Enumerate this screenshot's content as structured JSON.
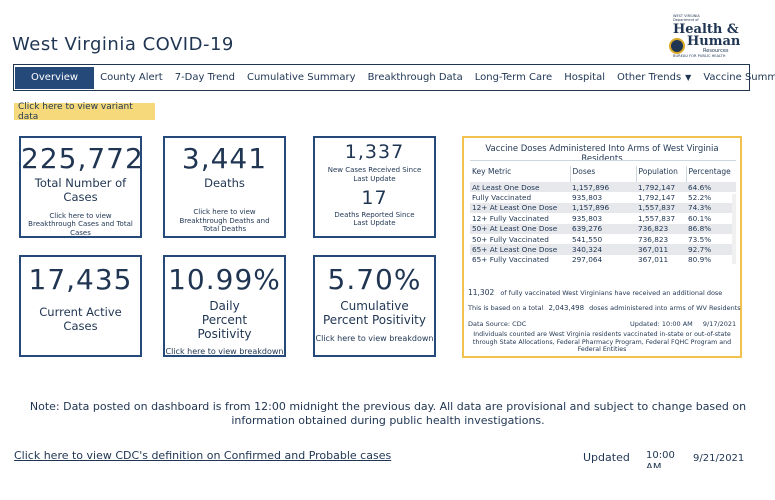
{
  "header": {
    "title": "West Virginia COVID-19"
  },
  "logo": {
    "line1": "WEST VIRGINIA",
    "line2": "Department of",
    "health": "Health &",
    "human": "Human",
    "resources": "Resources",
    "bureau": "BUREAU FOR PUBLIC HEALTH"
  },
  "nav": {
    "tabs": [
      {
        "label": "Overview"
      },
      {
        "label": "County Alert"
      },
      {
        "label": "7-Day Trend"
      },
      {
        "label": "Cumulative Summary"
      },
      {
        "label": "Breakthrough Data"
      },
      {
        "label": "Long-Term Care"
      },
      {
        "label": "Hospital"
      },
      {
        "label": "Other Trends"
      },
      {
        "label": "Vaccine Summary"
      }
    ],
    "active_index": 0
  },
  "variant_link": "Click here to view variant data",
  "cards": {
    "total_cases": {
      "value": "225,772",
      "label": "Total Number of Cases",
      "link": "Click here to view Breakthrough Cases and Total Cases"
    },
    "deaths": {
      "value": "3,441",
      "label": "Deaths",
      "link": "Click here to view Breakthrough Deaths and Total Deaths"
    },
    "new_cases": {
      "value": "1,337",
      "label": "New Cases Received Since Last Update",
      "deaths_value": "17",
      "deaths_label": "Deaths Reported Since Last Update"
    },
    "active": {
      "value": "17,435",
      "label": "Current Active Cases"
    },
    "daily_positivity": {
      "value": "10.99%",
      "label": "Daily Percent Positivity",
      "link": "Click here to view breakdown"
    },
    "cumulative_positivity": {
      "value": "5.70%",
      "label": "Cumulative Percent Positivity",
      "link": "Click here to view breakdown"
    }
  },
  "vaccine": {
    "title": "Vaccine Doses Administered Into Arms of West Virginia Residents",
    "columns": [
      "Key Metric",
      "Doses",
      "Population",
      "Percentage"
    ],
    "rows": [
      [
        "At Least One Dose",
        "1,157,896",
        "1,792,147",
        "64.6%"
      ],
      [
        "Fully Vaccinated",
        "935,803",
        "1,792,147",
        "52.2%"
      ],
      [
        "12+ At Least One Dose",
        "1,157,896",
        "1,557,837",
        "74.3%"
      ],
      [
        "12+ Fully Vaccinated",
        "935,803",
        "1,557,837",
        "60.1%"
      ],
      [
        "50+ At Least One Dose",
        "639,276",
        "736,823",
        "86.8%"
      ],
      [
        "50+ Fully Vaccinated",
        "541,550",
        "736,823",
        "73.5%"
      ],
      [
        "65+ At Least One Dose",
        "340,324",
        "367,011",
        "92.7%"
      ],
      [
        "65+ Fully Vaccinated",
        "297,064",
        "367,011",
        "80.9%"
      ]
    ],
    "additional_dose_count": "11,302",
    "additional_dose_text": "of fully vaccinated West Virginians have received an additional dose",
    "total_prefix": "This is based on a total",
    "total_doses": "2,043,498",
    "total_suffix": "doses administered into arms of WV Residents",
    "source": "Data Source: CDC",
    "updated_label": "Updated: 10:00 AM",
    "updated_date": "9/17/2021",
    "footnote": "Individuals counted are West Virginia residents vaccinated in-state or out-of-state through State Allocations, Federal Pharmacy Program, Federal FQHC Program and Federal Entities"
  },
  "disclaimer": "Note: Data posted on dashboard is from 12:00 midnight the previous day. All data are provisional and subject to change based on information obtained during public health investigations.",
  "footer": {
    "cdc_link": "Click here to view CDC's definition on Confirmed and Probable cases",
    "updated_label": "Updated",
    "time": "10:00 AM",
    "date": "9/21/2021"
  }
}
